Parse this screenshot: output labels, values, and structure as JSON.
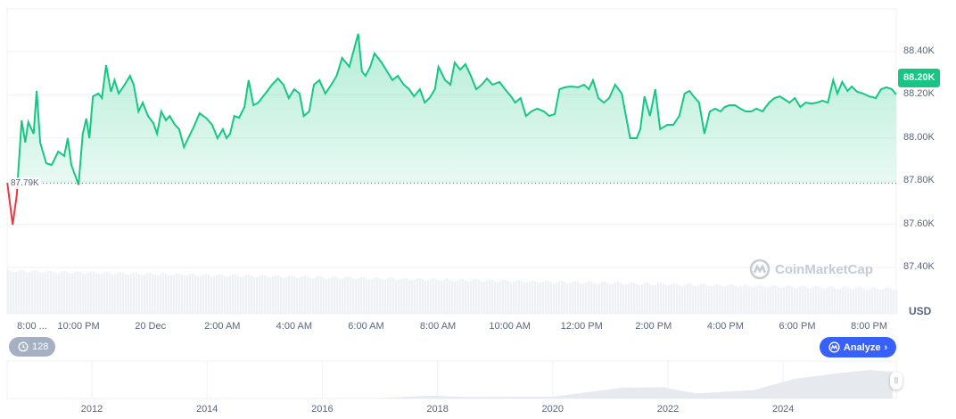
{
  "chart_data": {
    "type": "area",
    "currency_label": "USD",
    "current_price_label": "88.20K",
    "baseline_label": "87.79K",
    "baseline_value": 87790,
    "y_ticks": [
      "88.40K",
      "88.20K",
      "88.00K",
      "87.80K",
      "87.60K",
      "87.40K"
    ],
    "y_tick_values": [
      88400,
      88200,
      88000,
      87800,
      87600,
      87400
    ],
    "x_ticks": [
      "8:00 ...",
      "10:00 PM",
      "20 Dec",
      "2:00 AM",
      "4:00 AM",
      "6:00 AM",
      "8:00 AM",
      "10:00 AM",
      "12:00 PM",
      "2:00 PM",
      "4:00 PM",
      "6:00 PM",
      "8:00 PM"
    ],
    "x_tick_times": [
      "20:00",
      "22:00",
      "00:00",
      "02:00",
      "04:00",
      "06:00",
      "08:00",
      "10:00",
      "12:00",
      "14:00",
      "16:00",
      "18:00",
      "20:00"
    ],
    "grid": true,
    "colors": {
      "up": "#16c784",
      "down": "#ea3943",
      "accent": "#3861fb",
      "volume": "#eff2f5"
    },
    "points": [
      [
        "20:01",
        87793
      ],
      [
        "20:10",
        87598
      ],
      [
        "20:17",
        87739
      ],
      [
        "20:19",
        87834
      ],
      [
        "20:25",
        88082
      ],
      [
        "20:31",
        87979
      ],
      [
        "20:36",
        88074
      ],
      [
        "20:45",
        88020
      ],
      [
        "20:50",
        88218
      ],
      [
        "20:56",
        87979
      ],
      [
        "21:06",
        87883
      ],
      [
        "21:15",
        87875
      ],
      [
        "21:26",
        87937
      ],
      [
        "21:36",
        87917
      ],
      [
        "21:42",
        87999
      ],
      [
        "21:48",
        87875
      ],
      [
        "22:00",
        87784
      ],
      [
        "22:07",
        88020
      ],
      [
        "22:13",
        88090
      ],
      [
        "22:18",
        87999
      ],
      [
        "22:24",
        88193
      ],
      [
        "22:33",
        88206
      ],
      [
        "22:39",
        88185
      ],
      [
        "22:46",
        88338
      ],
      [
        "22:54",
        88214
      ],
      [
        "23:00",
        88268
      ],
      [
        "23:07",
        88206
      ],
      [
        "23:17",
        88247
      ],
      [
        "23:26",
        88288
      ],
      [
        "23:32",
        88247
      ],
      [
        "23:40",
        88123
      ],
      [
        "23:47",
        88164
      ],
      [
        "23:56",
        88102
      ],
      [
        "00:05",
        88069
      ],
      [
        "00:11",
        88020
      ],
      [
        "00:18",
        88123
      ],
      [
        "00:26",
        88082
      ],
      [
        "00:32",
        88102
      ],
      [
        "00:41",
        88061
      ],
      [
        "00:48",
        88041
      ],
      [
        "00:56",
        87958
      ],
      [
        "01:03",
        87999
      ],
      [
        "01:12",
        88049
      ],
      [
        "01:22",
        88115
      ],
      [
        "01:34",
        88090
      ],
      [
        "01:43",
        88061
      ],
      [
        "01:52",
        87999
      ],
      [
        "02:01",
        88041
      ],
      [
        "02:07",
        87999
      ],
      [
        "02:13",
        88020
      ],
      [
        "02:20",
        88102
      ],
      [
        "02:28",
        88094
      ],
      [
        "02:37",
        88144
      ],
      [
        "02:44",
        88268
      ],
      [
        "02:52",
        88152
      ],
      [
        "03:00",
        88164
      ],
      [
        "03:12",
        88206
      ],
      [
        "03:23",
        88247
      ],
      [
        "03:33",
        88276
      ],
      [
        "03:42",
        88247
      ],
      [
        "03:51",
        88185
      ],
      [
        "04:00",
        88226
      ],
      [
        "04:09",
        88206
      ],
      [
        "04:16",
        88102
      ],
      [
        "04:25",
        88123
      ],
      [
        "04:33",
        88247
      ],
      [
        "04:42",
        88268
      ],
      [
        "04:52",
        88206
      ],
      [
        "05:02",
        88247
      ],
      [
        "05:11",
        88288
      ],
      [
        "05:20",
        88371
      ],
      [
        "05:32",
        88330
      ],
      [
        "05:40",
        88412
      ],
      [
        "05:47",
        88483
      ],
      [
        "05:53",
        88309
      ],
      [
        "05:59",
        88288
      ],
      [
        "06:07",
        88330
      ],
      [
        "06:14",
        88392
      ],
      [
        "06:26",
        88350
      ],
      [
        "06:35",
        88309
      ],
      [
        "06:44",
        88268
      ],
      [
        "06:53",
        88288
      ],
      [
        "07:03",
        88247
      ],
      [
        "07:12",
        88226
      ],
      [
        "07:20",
        88193
      ],
      [
        "07:30",
        88226
      ],
      [
        "07:38",
        88164
      ],
      [
        "07:46",
        88185
      ],
      [
        "07:55",
        88226
      ],
      [
        "08:01",
        88330
      ],
      [
        "08:12",
        88268
      ],
      [
        "08:21",
        88247
      ],
      [
        "08:28",
        88350
      ],
      [
        "08:37",
        88317
      ],
      [
        "08:46",
        88342
      ],
      [
        "08:55",
        88288
      ],
      [
        "09:04",
        88226
      ],
      [
        "09:13",
        88247
      ],
      [
        "09:22",
        88276
      ],
      [
        "09:31",
        88247
      ],
      [
        "09:43",
        88260
      ],
      [
        "09:52",
        88226
      ],
      [
        "10:02",
        88193
      ],
      [
        "10:09",
        88164
      ],
      [
        "10:18",
        88185
      ],
      [
        "10:27",
        88102
      ],
      [
        "10:36",
        88123
      ],
      [
        "10:46",
        88136
      ],
      [
        "10:57",
        88123
      ],
      [
        "11:06",
        88102
      ],
      [
        "11:15",
        88111
      ],
      [
        "11:23",
        88226
      ],
      [
        "11:32",
        88235
      ],
      [
        "11:42",
        88239
      ],
      [
        "11:54",
        88235
      ],
      [
        "12:04",
        88247
      ],
      [
        "12:12",
        88226
      ],
      [
        "12:19",
        88268
      ],
      [
        "12:28",
        88185
      ],
      [
        "12:37",
        88164
      ],
      [
        "12:46",
        88185
      ],
      [
        "12:56",
        88247
      ],
      [
        "13:07",
        88206
      ],
      [
        "13:14",
        88102
      ],
      [
        "13:21",
        87999
      ],
      [
        "13:32",
        87999
      ],
      [
        "13:38",
        88041
      ],
      [
        "13:45",
        88193
      ],
      [
        "13:54",
        88102
      ],
      [
        "14:03",
        88226
      ],
      [
        "14:11",
        88041
      ],
      [
        "14:23",
        88061
      ],
      [
        "14:33",
        88061
      ],
      [
        "14:43",
        88102
      ],
      [
        "14:52",
        88206
      ],
      [
        "15:00",
        88218
      ],
      [
        "15:07",
        88193
      ],
      [
        "15:16",
        88164
      ],
      [
        "15:25",
        88020
      ],
      [
        "15:34",
        88123
      ],
      [
        "15:43",
        88136
      ],
      [
        "15:52",
        88123
      ],
      [
        "15:59",
        88144
      ],
      [
        "16:07",
        88152
      ],
      [
        "16:16",
        88152
      ],
      [
        "16:25",
        88136
      ],
      [
        "16:34",
        88123
      ],
      [
        "16:43",
        88123
      ],
      [
        "16:52",
        88136
      ],
      [
        "17:02",
        88123
      ],
      [
        "17:13",
        88164
      ],
      [
        "17:22",
        88185
      ],
      [
        "17:31",
        88193
      ],
      [
        "17:40",
        88177
      ],
      [
        "17:47",
        88164
      ],
      [
        "17:56",
        88185
      ],
      [
        "18:05",
        88144
      ],
      [
        "18:14",
        88164
      ],
      [
        "18:24",
        88160
      ],
      [
        "18:33",
        88164
      ],
      [
        "18:42",
        88173
      ],
      [
        "18:51",
        88164
      ],
      [
        "19:00",
        88268
      ],
      [
        "19:07",
        88206
      ],
      [
        "19:15",
        88260
      ],
      [
        "19:24",
        88218
      ],
      [
        "19:31",
        88239
      ],
      [
        "19:40",
        88214
      ],
      [
        "19:50",
        88206
      ],
      [
        "20:00",
        88193
      ],
      [
        "20:11",
        88185
      ],
      [
        "20:20",
        88226
      ],
      [
        "20:29",
        88235
      ],
      [
        "20:38",
        88226
      ],
      [
        "20:45",
        88202
      ]
    ],
    "navigator": {
      "x_ticks": [
        "2012",
        "2014",
        "2016",
        "2018",
        "2020",
        "2022",
        "2024"
      ],
      "x_tick_years": [
        2012,
        2014,
        2016,
        2018,
        2020,
        2022,
        2024
      ],
      "points": [
        [
          2010.6,
          0
        ],
        [
          2013,
          0.3
        ],
        [
          2017,
          1
        ],
        [
          2017.9,
          8
        ],
        [
          2018.5,
          4
        ],
        [
          2020,
          5
        ],
        [
          2021.2,
          30
        ],
        [
          2021.9,
          32
        ],
        [
          2022.5,
          14
        ],
        [
          2023.5,
          24
        ],
        [
          2024.2,
          55
        ],
        [
          2024.9,
          70
        ],
        [
          2025.5,
          80
        ],
        [
          2025.9,
          75
        ]
      ]
    }
  },
  "controls": {
    "history_count": "128",
    "analyze_label": "Analyze"
  },
  "watermark": "CoinMarketCap"
}
